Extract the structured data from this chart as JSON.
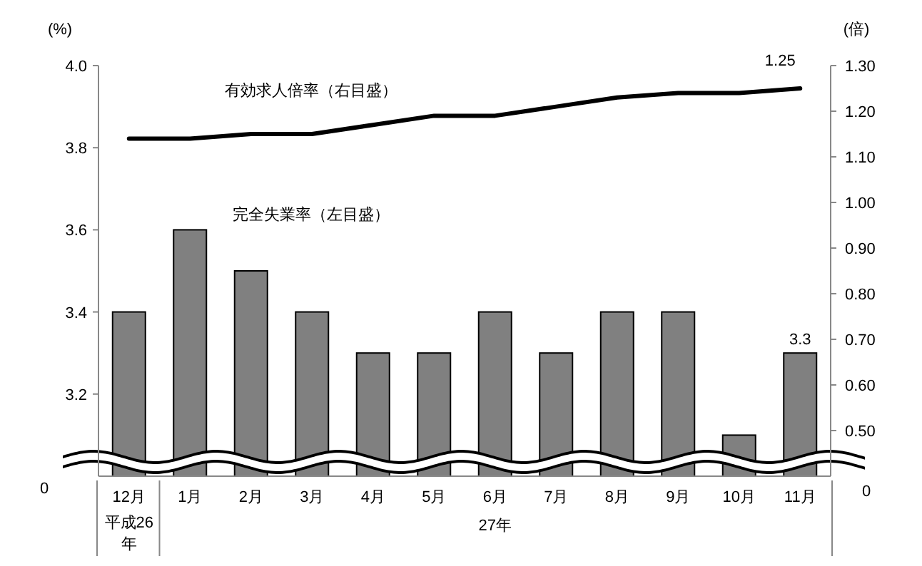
{
  "chart_data": {
    "type": "bar",
    "categories": [
      "12月",
      "1月",
      "2月",
      "3月",
      "4月",
      "5月",
      "6月",
      "7月",
      "8月",
      "9月",
      "10月",
      "11月"
    ],
    "ylabel": "(%)",
    "y2label": "(倍)",
    "ylim": [
      3.0,
      4.0
    ],
    "yticks": [
      3.2,
      3.4,
      3.6,
      3.8,
      {
        "value": 4.0,
        "label": "4.0"
      }
    ],
    "y2lim": [
      0.4,
      1.3
    ],
    "y2ticks": [
      {
        "value": 0.5,
        "label": "0.50"
      },
      {
        "value": 0.6,
        "label": "0.60"
      },
      {
        "value": 0.7,
        "label": "0.70"
      },
      {
        "value": 0.8,
        "label": "0.80"
      },
      {
        "value": 0.9,
        "label": "0.90"
      },
      {
        "value": 1.0,
        "label": "1.00"
      },
      {
        "value": 1.1,
        "label": "1.10"
      },
      {
        "value": 1.2,
        "label": "1.20"
      },
      {
        "value": 1.3,
        "label": "1.30"
      }
    ],
    "series": [
      {
        "name": "完全失業率（左目盛）",
        "color": "#808080",
        "values": [
          3.4,
          3.6,
          3.5,
          3.4,
          3.3,
          3.3,
          3.4,
          3.3,
          3.4,
          3.4,
          3.1,
          3.3
        ],
        "value_labels": [
          null,
          null,
          null,
          null,
          null,
          null,
          null,
          null,
          null,
          null,
          null,
          "3.3"
        ]
      },
      {
        "name": "有効求人倍率（右目盛）",
        "type": "line",
        "axis": "y2",
        "color": "#000000",
        "values": [
          1.14,
          1.14,
          1.15,
          1.15,
          1.17,
          1.19,
          1.19,
          1.21,
          1.23,
          1.24,
          1.24,
          1.25
        ],
        "value_labels": [
          null,
          null,
          null,
          null,
          null,
          null,
          null,
          null,
          null,
          null,
          null,
          "1.25"
        ]
      }
    ],
    "annotations": [
      "平成26年",
      "27年",
      "0",
      "0"
    ],
    "legend": false,
    "grid": false
  }
}
